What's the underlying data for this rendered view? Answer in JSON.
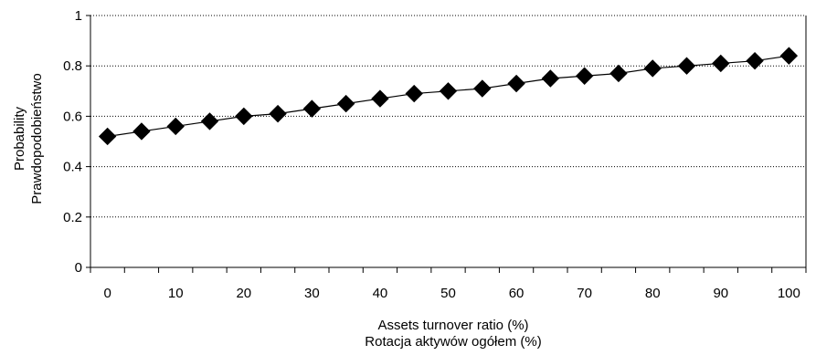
{
  "chart_data": {
    "type": "line",
    "title": "",
    "xlabel": [
      "Assets turnover ratio (%)",
      "Rotacja aktywów ogółem (%)"
    ],
    "ylabel": [
      "Probability",
      "Prawdopodobieństwo"
    ],
    "xlim": [
      0,
      100
    ],
    "ylim": [
      0,
      1
    ],
    "x_ticks": [
      "0",
      "10",
      "20",
      "30",
      "40",
      "50",
      "60",
      "70",
      "80",
      "90",
      "100"
    ],
    "y_ticks": [
      "0",
      "0.2",
      "0.4",
      "0.6",
      "0.8",
      "1"
    ],
    "grid": "horizontal-dotted",
    "series": [
      {
        "marker": "diamond",
        "color": "#000000",
        "x": [
          0,
          5,
          10,
          15,
          20,
          25,
          30,
          35,
          40,
          45,
          50,
          55,
          60,
          65,
          70,
          75,
          80,
          85,
          90,
          95,
          100
        ],
        "y": [
          0.52,
          0.54,
          0.56,
          0.58,
          0.6,
          0.61,
          0.63,
          0.65,
          0.67,
          0.69,
          0.7,
          0.71,
          0.73,
          0.75,
          0.76,
          0.77,
          0.79,
          0.8,
          0.81,
          0.82,
          0.84
        ]
      }
    ]
  }
}
